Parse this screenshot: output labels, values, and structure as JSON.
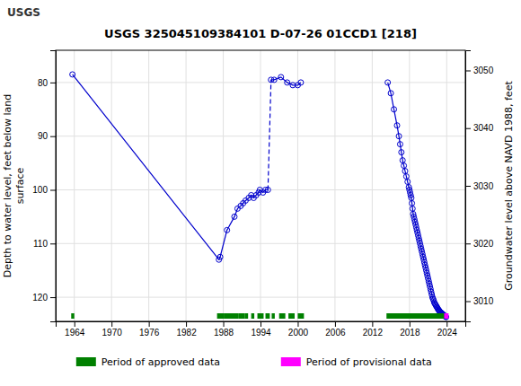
{
  "chart_data": {
    "type": "line",
    "title": "USGS 325045109384101 D-07-26 01CCD1 [218]",
    "annotations": [
      "USGS"
    ],
    "y_label": "Depth to water level, feet below land\nsurface",
    "y2_label": "Groundwater level above NAVD 1988, feet",
    "xlim": [
      1961,
      2027
    ],
    "ylim": [
      124.5,
      74.0
    ],
    "y2lim": [
      3006.5,
      3053.5
    ],
    "xticks": [
      1964,
      1970,
      1976,
      1982,
      1988,
      1994,
      2000,
      2006,
      2012,
      2018,
      2024
    ],
    "yticks": [
      80,
      90,
      100,
      110,
      120
    ],
    "y2ticks": [
      3010,
      3020,
      3030,
      3040,
      3050
    ],
    "grid": true,
    "legend": "bottom",
    "series": [
      {
        "type": "line",
        "color": "#0000cc",
        "marker": "none",
        "line_style": "dashed",
        "x": [
          1995.2,
          1995.7
        ],
        "values": [
          100.0,
          79.5
        ]
      },
      {
        "type": "line",
        "color": "#0000cc",
        "marker": "circle",
        "line_style": "solid",
        "x": [
          1963.7,
          1987.3,
          1987.5,
          1988.6,
          1989.8,
          1990.3,
          1990.8,
          1991.2,
          1991.6,
          1992.1,
          1992.5,
          1992.9,
          1993.3,
          1993.7,
          1993.9,
          1994.4,
          1994.8,
          1995.2
        ],
        "values": [
          78.5,
          113.0,
          112.5,
          107.5,
          105.0,
          103.5,
          103.0,
          102.5,
          102.0,
          101.5,
          101.0,
          101.5,
          101.0,
          100.5,
          100.0,
          100.5,
          100.0,
          100.0
        ]
      },
      {
        "type": "line",
        "color": "#0000cc",
        "marker": "circle",
        "line_style": "solid",
        "x": [
          1995.7,
          1996.2,
          1997.3,
          1998.3,
          1999.2,
          2000.0,
          2000.5
        ],
        "values": [
          79.5,
          79.5,
          79.0,
          80.0,
          80.5,
          80.5,
          80.0
        ]
      },
      {
        "type": "line",
        "color": "#0000cc",
        "marker": "circle",
        "line_style": "solid",
        "x": [
          2014.5,
          2015.0,
          2015.5,
          2016.0,
          2016.3,
          2016.5,
          2016.7,
          2016.9,
          2017.1,
          2017.3,
          2017.5,
          2017.7,
          2017.9,
          2018.0,
          2018.1,
          2018.2,
          2018.3,
          2018.4,
          2018.5,
          2018.6,
          2018.7,
          2018.8,
          2018.9,
          2019.0,
          2019.1,
          2019.2,
          2019.3,
          2019.4,
          2019.5,
          2019.6,
          2019.7,
          2019.8,
          2019.9,
          2020.0,
          2020.1,
          2020.2,
          2020.3,
          2020.4,
          2020.5,
          2020.6,
          2020.7,
          2020.8,
          2020.9,
          2021.0,
          2021.1,
          2021.2,
          2021.3,
          2021.4,
          2021.5,
          2021.6,
          2021.7,
          2021.8,
          2021.9,
          2022.0,
          2022.1,
          2022.2,
          2022.3,
          2022.4,
          2022.5,
          2022.6,
          2022.7,
          2022.8,
          2022.9,
          2023.0,
          2023.1,
          2023.2,
          2023.3,
          2023.4,
          2023.5,
          2023.6,
          2023.7,
          2023.8,
          2023.9
        ],
        "values": [
          80.0,
          82.0,
          85.0,
          88.0,
          90.0,
          91.5,
          93.0,
          94.5,
          95.5,
          96.5,
          97.5,
          98.5,
          99.5,
          100.0,
          100.5,
          101.0,
          101.5,
          102.5,
          103.5,
          104.5,
          105.0,
          105.5,
          106.0,
          106.5,
          107.0,
          107.5,
          108.0,
          108.5,
          109.0,
          109.5,
          110.0,
          110.5,
          111.0,
          111.5,
          112.0,
          112.5,
          113.0,
          113.5,
          114.0,
          114.5,
          115.0,
          115.5,
          116.0,
          116.5,
          117.0,
          117.5,
          118.0,
          118.5,
          119.0,
          119.5,
          120.0,
          120.3,
          120.6,
          121.0,
          121.2,
          121.4,
          121.6,
          121.8,
          122.0,
          122.2,
          122.4,
          122.5,
          122.7,
          122.8,
          122.9,
          123.0,
          123.1,
          123.2,
          123.3,
          123.4,
          123.5,
          123.6,
          123.7
        ]
      },
      {
        "name": "Period of approved data",
        "type": "period",
        "color": "#008000",
        "values": [
          [
            1963.5,
            1964.0
          ],
          [
            1987.0,
            1988.2
          ],
          [
            1988.2,
            1990.5
          ],
          [
            1990.5,
            1991.5
          ],
          [
            1991.5,
            1992.0
          ],
          [
            1992.5,
            1993.0
          ],
          [
            1993.5,
            1994.5
          ],
          [
            1994.8,
            1995.5
          ],
          [
            1995.8,
            1996.3
          ],
          [
            1997.0,
            1998.0
          ],
          [
            1998.5,
            1999.5
          ],
          [
            2000.0,
            2001.0
          ],
          [
            2014.3,
            2023.6
          ]
        ]
      },
      {
        "name": "Period of provisional data",
        "type": "period",
        "color": "#ff00ff",
        "values": [
          [
            2023.6,
            2024.3
          ]
        ]
      }
    ]
  }
}
